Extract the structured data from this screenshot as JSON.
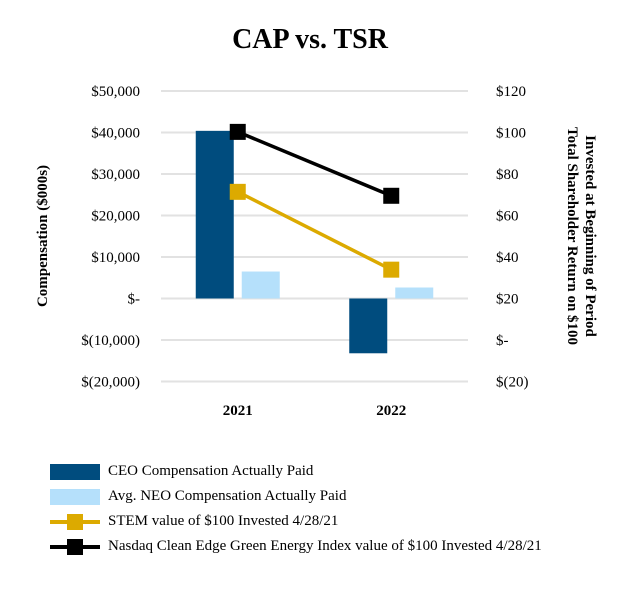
{
  "chart_data": {
    "type": "bar+line",
    "title": "CAP vs. TSR",
    "categories": [
      "2021",
      "2022"
    ],
    "ylabel": "Compensation ($000s)",
    "y2label_lines": [
      "Total Shareholder Return  on $100",
      "Invested at Beginning of Period"
    ],
    "ylim": [
      -20000,
      50000
    ],
    "y2lim": [
      -20,
      120
    ],
    "yticks": [
      {
        "v": 50000,
        "label": "$50,000"
      },
      {
        "v": 40000,
        "label": "$40,000"
      },
      {
        "v": 30000,
        "label": "$30,000"
      },
      {
        "v": 20000,
        "label": "$20,000"
      },
      {
        "v": 10000,
        "label": "$10,000"
      },
      {
        "v": 0,
        "label": "$-"
      },
      {
        "v": -10000,
        "label": "$(10,000)"
      },
      {
        "v": -20000,
        "label": "$(20,000)"
      }
    ],
    "y2ticks": [
      {
        "v": 120,
        "label": "$120"
      },
      {
        "v": 100,
        "label": "$100"
      },
      {
        "v": 80,
        "label": "$80"
      },
      {
        "v": 60,
        "label": "$60"
      },
      {
        "v": 40,
        "label": "$40"
      },
      {
        "v": 20,
        "label": "$20"
      },
      {
        "v": 0,
        "label": "$-"
      },
      {
        "v": -20,
        "label": "$(20)"
      }
    ],
    "grid": true,
    "legend_position": "bottom",
    "bar_series": [
      {
        "name": "CEO Compensation Actually Paid",
        "values": [
          40400,
          -13200
        ],
        "color": "#004c7e"
      },
      {
        "name": "Avg. NEO Compensation Actually Paid",
        "values": [
          6500,
          2650
        ],
        "color": "#b5e0fb"
      }
    ],
    "line_series": [
      {
        "name": "STEM value of $100 Invested 4/28/21",
        "values": [
          71.4,
          33.9
        ],
        "color": "#dcaa00"
      },
      {
        "name": "Nasdaq Clean Edge Green Energy Index value of $100 Invested 4/28/21",
        "values": [
          100.3,
          69.5
        ],
        "color": "#000000"
      }
    ]
  }
}
